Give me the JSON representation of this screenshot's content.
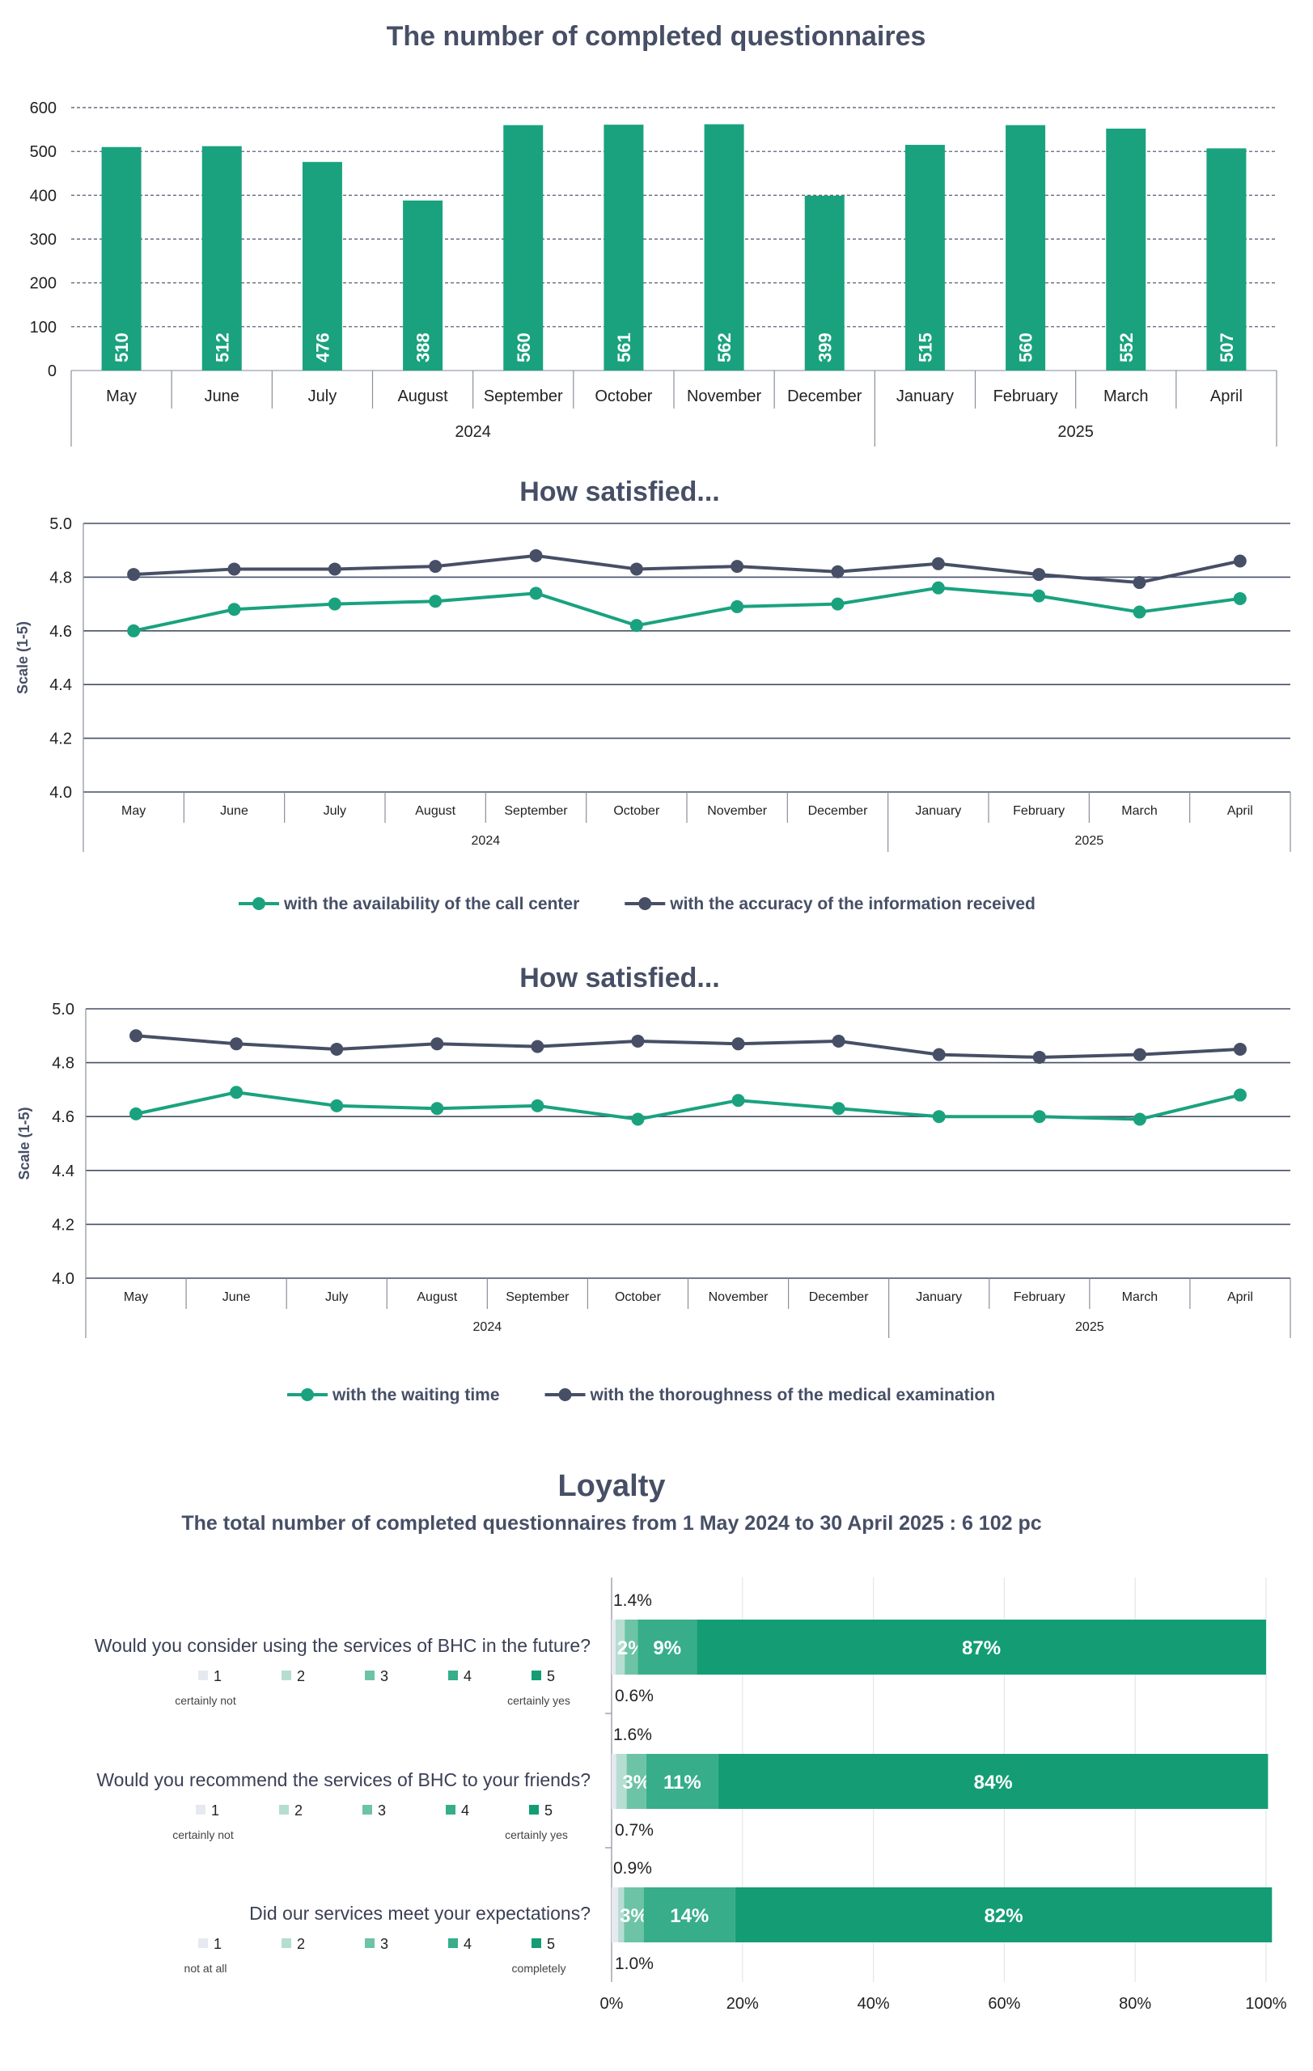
{
  "colors": {
    "green": "#1aa27f",
    "dark": "#474f66",
    "grid": "#474f66",
    "l1": "#e6e9f0",
    "l2": "#b6ddd2",
    "l3": "#6dc3a6",
    "l4": "#37ad8a",
    "l5": "#149d74"
  },
  "chart_data": [
    {
      "type": "bar",
      "title": "The number of completed questionnaires",
      "categories": [
        "May",
        "June",
        "July",
        "August",
        "September",
        "October",
        "November",
        "December",
        "January",
        "February",
        "March",
        "April"
      ],
      "years": [
        {
          "label": "2024",
          "span": 8
        },
        {
          "label": "2025",
          "span": 4
        }
      ],
      "values": [
        510,
        512,
        476,
        388,
        560,
        561,
        562,
        399,
        515,
        560,
        552,
        507
      ],
      "ylim": [
        0,
        600
      ],
      "yticks": [
        0,
        100,
        200,
        300,
        400,
        500,
        600
      ]
    },
    {
      "type": "line",
      "title": "How satisfied...",
      "ylabel": "Scale (1-5)",
      "categories": [
        "May",
        "June",
        "July",
        "August",
        "September",
        "October",
        "November",
        "December",
        "January",
        "February",
        "March",
        "April"
      ],
      "years": [
        {
          "label": "2024",
          "span": 8
        },
        {
          "label": "2025",
          "span": 4
        }
      ],
      "ylim": [
        4.0,
        5.0
      ],
      "yticks": [
        "4.0",
        "4.2",
        "4.4",
        "4.6",
        "4.8",
        "5.0"
      ],
      "series": [
        {
          "name": "with the availability of the call center",
          "color": "green",
          "values": [
            4.6,
            4.68,
            4.7,
            4.71,
            4.74,
            4.62,
            4.69,
            4.7,
            4.76,
            4.73,
            4.67,
            4.72
          ]
        },
        {
          "name": "with the accuracy of the information received",
          "color": "dark",
          "values": [
            4.81,
            4.83,
            4.83,
            4.84,
            4.88,
            4.83,
            4.84,
            4.82,
            4.85,
            4.81,
            4.78,
            4.86
          ]
        }
      ]
    },
    {
      "type": "line",
      "title": "How satisfied...",
      "ylabel": "Scale (1-5)",
      "categories": [
        "May",
        "June",
        "July",
        "August",
        "September",
        "October",
        "November",
        "December",
        "January",
        "February",
        "March",
        "April"
      ],
      "years": [
        {
          "label": "2024",
          "span": 8
        },
        {
          "label": "2025",
          "span": 4
        }
      ],
      "ylim": [
        4.0,
        5.0
      ],
      "yticks": [
        "4.0",
        "4.2",
        "4.4",
        "4.6",
        "4.8",
        "5.0"
      ],
      "series": [
        {
          "name": "with the waiting time",
          "color": "green",
          "values": [
            4.61,
            4.69,
            4.64,
            4.63,
            4.64,
            4.59,
            4.66,
            4.63,
            4.6,
            4.6,
            4.59,
            4.68
          ]
        },
        {
          "name": "with the thoroughness of the medical examination",
          "color": "dark",
          "values": [
            4.9,
            4.87,
            4.85,
            4.87,
            4.86,
            4.88,
            4.87,
            4.88,
            4.83,
            4.82,
            4.83,
            4.85
          ]
        }
      ]
    },
    {
      "type": "stacked-bar",
      "title": "Loyalty",
      "subtitle": "The total number of completed questionnaires from 1 May 2024 to 30 April 2025 : 6 102 pc",
      "xticks": [
        "0%",
        "20%",
        "40%",
        "60%",
        "80%",
        "100%"
      ],
      "legend_levels": [
        "1",
        "2",
        "3",
        "4",
        "5"
      ],
      "questions": [
        {
          "question": "Would you consider using the services of BHC in the future?",
          "low": "certainly not",
          "high": "certainly yes",
          "values": [
            0.6,
            1.4,
            2,
            9,
            87
          ],
          "labels": [
            "",
            "",
            "2%",
            "9%",
            "87%"
          ],
          "above": "1.4%",
          "below": "0.6%"
        },
        {
          "question": "Would you recommend the services of BHC to your friends?",
          "low": "certainly not",
          "high": "certainly yes",
          "values": [
            0.7,
            1.6,
            3,
            11,
            84
          ],
          "labels": [
            "",
            "",
            "3%",
            "11%",
            "84%"
          ],
          "above": "1.6%",
          "below": "0.7%"
        },
        {
          "question": "Did our services meet your expectations?",
          "low": "not at all",
          "high": "completely",
          "values": [
            1.0,
            0.9,
            3,
            14,
            82
          ],
          "labels": [
            "",
            "",
            "3%",
            "14%",
            "82%"
          ],
          "above": "0.9%",
          "below": "1.0%"
        }
      ]
    }
  ]
}
